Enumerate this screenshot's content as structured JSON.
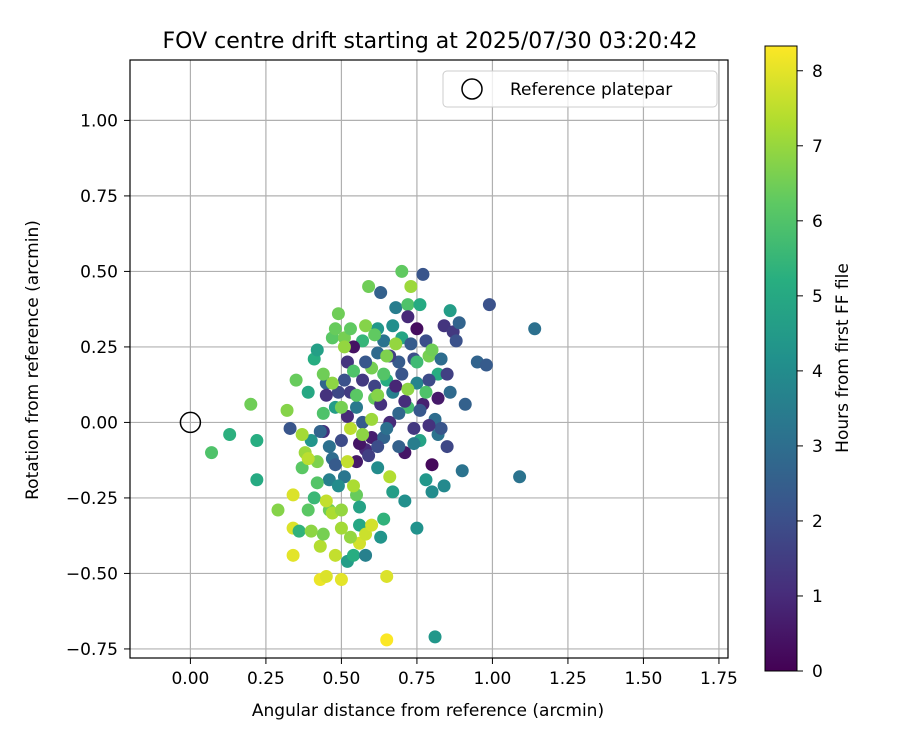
{
  "chart_data": {
    "type": "scatter",
    "title": "FOV centre drift starting at 2025/07/30 03:20:42",
    "xlabel": "Angular distance from reference (arcmin)",
    "ylabel": "Rotation from reference (arcmin)",
    "xlim": [
      -0.2,
      1.78
    ],
    "ylim": [
      -0.78,
      1.2
    ],
    "xticks": [
      0.0,
      0.25,
      0.5,
      0.75,
      1.0,
      1.25,
      1.5,
      1.75
    ],
    "xtick_labels": [
      "0.00",
      "0.25",
      "0.50",
      "0.75",
      "1.00",
      "1.25",
      "1.50",
      "1.75"
    ],
    "yticks": [
      -0.75,
      -0.5,
      -0.25,
      0.0,
      0.25,
      0.5,
      0.75,
      1.0
    ],
    "ytick_labels": [
      "−0.75",
      "−0.50",
      "−0.25",
      "0.00",
      "0.25",
      "0.50",
      "0.75",
      "1.00"
    ],
    "grid": true,
    "legend": {
      "label": "Reference platepar",
      "position": "top-right"
    },
    "reference_point": {
      "x": 0.0,
      "y": 0.0
    },
    "colorbar": {
      "label": "Hours from first FF file",
      "min": 0,
      "max": 8.33,
      "ticks": [
        0,
        1,
        2,
        3,
        4,
        5,
        6,
        7,
        8
      ],
      "colormap": "viridis"
    },
    "series": [
      {
        "points": [
          [
            0.07,
            -0.1,
            6.0
          ],
          [
            0.13,
            -0.04,
            5.3
          ],
          [
            0.2,
            0.06,
            6.5
          ],
          [
            0.22,
            -0.06,
            5.2
          ],
          [
            0.22,
            -0.19,
            5.1
          ],
          [
            0.29,
            -0.29,
            6.8
          ],
          [
            0.32,
            0.04,
            6.8
          ],
          [
            0.33,
            -0.02,
            2.2
          ],
          [
            0.34,
            -0.24,
            7.9
          ],
          [
            0.34,
            -0.35,
            7.9
          ],
          [
            0.34,
            -0.44,
            8.0
          ],
          [
            0.35,
            0.14,
            6.4
          ],
          [
            0.36,
            -0.36,
            5.4
          ],
          [
            0.37,
            -0.15,
            6.2
          ],
          [
            0.38,
            -0.1,
            7.1
          ],
          [
            0.39,
            0.1,
            5.0
          ],
          [
            0.39,
            -0.29,
            6.2
          ],
          [
            0.4,
            -0.06,
            4.3
          ],
          [
            0.41,
            0.21,
            5.2
          ],
          [
            0.41,
            -0.25,
            5.6
          ],
          [
            0.42,
            -0.13,
            6.7
          ],
          [
            0.42,
            0.24,
            4.7
          ],
          [
            0.43,
            -0.41,
            7.4
          ],
          [
            0.43,
            -0.52,
            8.1
          ],
          [
            0.44,
            -0.37,
            6.6
          ],
          [
            0.44,
            0.03,
            6.0
          ],
          [
            0.45,
            -0.51,
            7.9
          ],
          [
            0.45,
            0.13,
            2.8
          ],
          [
            0.46,
            -0.08,
            3.1
          ],
          [
            0.46,
            -0.29,
            6.5
          ],
          [
            0.47,
            0.28,
            6.2
          ],
          [
            0.48,
            -0.44,
            7.6
          ],
          [
            0.48,
            0.05,
            4.6
          ],
          [
            0.49,
            0.36,
            6.5
          ],
          [
            0.49,
            0.1,
            1.8
          ],
          [
            0.5,
            -0.52,
            8.0
          ],
          [
            0.5,
            -0.35,
            7.2
          ],
          [
            0.51,
            0.28,
            6.6
          ],
          [
            0.51,
            -0.18,
            3.3
          ],
          [
            0.52,
            -0.46,
            4.6
          ],
          [
            0.52,
            0.2,
            1.3
          ],
          [
            0.53,
            0.31,
            6.3
          ],
          [
            0.53,
            -0.02,
            7.5
          ],
          [
            0.54,
            -0.44,
            5.2
          ],
          [
            0.54,
            0.17,
            6.0
          ],
          [
            0.55,
            -0.24,
            6.4
          ],
          [
            0.55,
            0.05,
            3.4
          ],
          [
            0.56,
            -0.34,
            5.0
          ],
          [
            0.56,
            -0.4,
            7.8
          ],
          [
            0.57,
            0.0,
            2.4
          ],
          [
            0.57,
            0.27,
            5.5
          ],
          [
            0.58,
            -0.37,
            7.7
          ],
          [
            0.58,
            -0.09,
            1.0
          ],
          [
            0.59,
            0.45,
            6.5
          ],
          [
            0.6,
            -0.34,
            7.8
          ],
          [
            0.6,
            0.18,
            6.6
          ],
          [
            0.61,
            0.08,
            6.4
          ],
          [
            0.62,
            -0.15,
            4.0
          ],
          [
            0.62,
            0.31,
            4.4
          ],
          [
            0.63,
            -0.38,
            4.3
          ],
          [
            0.63,
            0.43,
            2.6
          ],
          [
            0.64,
            -0.32,
            5.4
          ],
          [
            0.64,
            0.27,
            3.2
          ],
          [
            0.65,
            -0.51,
            7.9
          ],
          [
            0.65,
            -0.72,
            8.3
          ],
          [
            0.65,
            0.14,
            5.2
          ],
          [
            0.66,
            0.0,
            1.0
          ],
          [
            0.66,
            -0.18,
            7.4
          ],
          [
            0.67,
            -0.23,
            4.6
          ],
          [
            0.67,
            0.1,
            3.6
          ],
          [
            0.68,
            0.38,
            3.5
          ],
          [
            0.69,
            0.2,
            2.4
          ],
          [
            0.7,
            0.5,
            6.3
          ],
          [
            0.7,
            0.28,
            4.9
          ],
          [
            0.71,
            -0.1,
            0.5
          ],
          [
            0.72,
            0.39,
            6.0
          ],
          [
            0.72,
            0.05,
            5.8
          ],
          [
            0.73,
            0.45,
            7.1
          ],
          [
            0.74,
            0.21,
            2.0
          ],
          [
            0.75,
            -0.35,
            4.2
          ],
          [
            0.75,
            0.13,
            3.7
          ],
          [
            0.76,
            0.39,
            5.1
          ],
          [
            0.76,
            -0.06,
            4.8
          ],
          [
            0.77,
            0.49,
            2.2
          ],
          [
            0.78,
            0.27,
            2.0
          ],
          [
            0.78,
            -0.19,
            4.4
          ],
          [
            0.79,
            0.22,
            6.6
          ],
          [
            0.8,
            -0.14,
            0.2
          ],
          [
            0.8,
            -0.23,
            4.0
          ],
          [
            0.81,
            -0.71,
            4.4
          ],
          [
            0.82,
            0.16,
            5.2
          ],
          [
            0.82,
            -0.04,
            3.2
          ],
          [
            0.83,
            0.21,
            3.0
          ],
          [
            0.84,
            -0.21,
            3.9
          ],
          [
            0.84,
            0.32,
            1.3
          ],
          [
            0.85,
            -0.08,
            1.8
          ],
          [
            0.86,
            0.1,
            2.9
          ],
          [
            0.86,
            0.37,
            4.6
          ],
          [
            0.87,
            0.3,
            1.4
          ],
          [
            0.88,
            0.27,
            2.1
          ],
          [
            0.89,
            0.33,
            2.7
          ],
          [
            0.9,
            -0.16,
            3.2
          ],
          [
            0.91,
            0.06,
            2.6
          ],
          [
            0.95,
            0.2,
            2.7
          ],
          [
            0.98,
            0.19,
            2.4
          ],
          [
            0.99,
            0.39,
            2.1
          ],
          [
            1.09,
            -0.18,
            3.2
          ],
          [
            1.14,
            0.31,
            3.1
          ],
          [
            0.44,
            -0.03,
            1.1
          ],
          [
            0.47,
            -0.12,
            3.0
          ],
          [
            0.5,
            -0.06,
            1.9
          ],
          [
            0.53,
            0.1,
            1.5
          ],
          [
            0.55,
            -0.13,
            0.6
          ],
          [
            0.58,
            0.2,
            2.3
          ],
          [
            0.6,
            -0.05,
            0.7
          ],
          [
            0.61,
            0.12,
            1.7
          ],
          [
            0.63,
            0.06,
            1.2
          ],
          [
            0.64,
            -0.05,
            2.7
          ],
          [
            0.66,
            0.22,
            1.6
          ],
          [
            0.68,
            0.12,
            0.9
          ],
          [
            0.69,
            -0.08,
            2.6
          ],
          [
            0.7,
            0.16,
            2.2
          ],
          [
            0.71,
            0.07,
            1.1
          ],
          [
            0.73,
            0.26,
            2.4
          ],
          [
            0.74,
            -0.02,
            1.4
          ],
          [
            0.75,
            0.31,
            0.3
          ],
          [
            0.77,
            0.06,
            0.8
          ],
          [
            0.79,
            0.14,
            1.9
          ],
          [
            0.81,
            0.01,
            3.0
          ],
          [
            0.83,
            -0.02,
            2.2
          ],
          [
            0.85,
            0.16,
            1.6
          ],
          [
            0.72,
            0.35,
            1.0
          ],
          [
            0.67,
            0.32,
            4.1
          ],
          [
            0.62,
            0.23,
            2.9
          ],
          [
            0.57,
            0.14,
            1.4
          ],
          [
            0.52,
            0.02,
            1.0
          ],
          [
            0.48,
            -0.14,
            2.4
          ],
          [
            0.46,
            -0.19,
            3.6
          ],
          [
            0.56,
            -0.07,
            0.5
          ],
          [
            0.59,
            -0.11,
            1.6
          ],
          [
            0.62,
            -0.08,
            2.0
          ],
          [
            0.65,
            -0.02,
            3.1
          ],
          [
            0.69,
            0.03,
            2.8
          ],
          [
            0.76,
            0.04,
            2.3
          ],
          [
            0.79,
            -0.01,
            1.2
          ],
          [
            0.82,
            0.08,
            0.6
          ],
          [
            0.74,
            -0.07,
            3.5
          ],
          [
            0.71,
            -0.26,
            4.1
          ],
          [
            0.54,
            0.25,
            0.4
          ],
          [
            0.51,
            0.14,
            2.1
          ],
          [
            0.45,
            0.09,
            1.2
          ],
          [
            0.43,
            -0.03,
            2.7
          ],
          [
            0.49,
            -0.21,
            4.0
          ],
          [
            0.56,
            -0.28,
            4.8
          ],
          [
            0.58,
            -0.44,
            3.6
          ],
          [
            0.53,
            -0.38,
            7.0
          ],
          [
            0.47,
            -0.3,
            7.3
          ],
          [
            0.4,
            -0.36,
            6.9
          ],
          [
            0.37,
            -0.04,
            7.2
          ],
          [
            0.39,
            -0.12,
            7.5
          ],
          [
            0.42,
            -0.2,
            6.1
          ],
          [
            0.45,
            -0.26,
            7.6
          ],
          [
            0.5,
            -0.29,
            7.0
          ],
          [
            0.52,
            -0.13,
            7.6
          ],
          [
            0.54,
            -0.21,
            7.3
          ],
          [
            0.57,
            -0.04,
            6.9
          ],
          [
            0.6,
            0.01,
            7.1
          ],
          [
            0.62,
            0.09,
            6.8
          ],
          [
            0.65,
            0.22,
            6.7
          ],
          [
            0.68,
            0.26,
            7.0
          ],
          [
            0.55,
            0.09,
            6.2
          ],
          [
            0.5,
            0.05,
            6.6
          ],
          [
            0.47,
            0.13,
            6.9
          ],
          [
            0.44,
            0.16,
            6.5
          ],
          [
            0.51,
            0.25,
            7.0
          ],
          [
            0.48,
            0.31,
            6.4
          ],
          [
            0.58,
            0.32,
            6.8
          ],
          [
            0.61,
            0.29,
            6.3
          ],
          [
            0.64,
            0.16,
            6.1
          ],
          [
            0.72,
            0.11,
            6.9
          ],
          [
            0.78,
            0.1,
            6.0
          ],
          [
            0.8,
            0.24,
            6.5
          ],
          [
            0.75,
            0.2,
            5.7
          ]
        ]
      }
    ]
  }
}
